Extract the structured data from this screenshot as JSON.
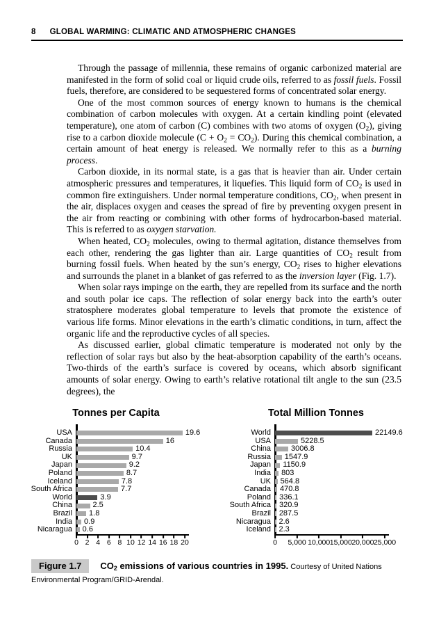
{
  "page": {
    "number": "8",
    "running_title": "GLOBAL WARMING: CLIMATIC AND ATMOSPHERIC CHANGES"
  },
  "main": {
    "paragraphs": [
      {
        "segments": [
          {
            "text": "Through the passage of millennia, these remains of organic carbonized material are manifested in the form of solid coal or liquid crude oils, referred to as "
          },
          {
            "text": "fossil fuels",
            "italic": true
          },
          {
            "text": ". Fossil fuels, therefore, are considered to be sequestered forms of concentrated solar energy."
          }
        ]
      },
      {
        "segments": [
          {
            "text": "One of the most common sources of energy known to humans is the chemical combination of carbon molecules with oxygen. At a certain kindling point (elevated temperature), one atom of carbon (C) combines with two atoms of oxygen (O"
          },
          {
            "text": "2",
            "sub": true
          },
          {
            "text": "), giving rise to a carbon dioxide molecule (C + O"
          },
          {
            "text": "2",
            "sub": true
          },
          {
            "text": " = CO"
          },
          {
            "text": "2",
            "sub": true
          },
          {
            "text": "). During this chemical combination, a certain amount of heat energy is released. We normally refer to this as a "
          },
          {
            "text": "burning process",
            "italic": true
          },
          {
            "text": "."
          }
        ]
      },
      {
        "segments": [
          {
            "text": "Carbon dioxide, in its normal state, is a gas that is heavier than air. Under certain atmospheric pressures and temperatures, it liquefies. This liquid form of CO"
          },
          {
            "text": "2",
            "sub": true
          },
          {
            "text": " is used in common fire extinguishers. Under normal temperature conditions, CO"
          },
          {
            "text": "2",
            "sub": true
          },
          {
            "text": ", when present in the air, displaces oxygen and ceases the spread of fire by preventing oxygen present in the air from reacting or combining with other forms of hydrocarbon-based material. This is referred to as "
          },
          {
            "text": "oxygen starvation.",
            "italic": true
          }
        ]
      },
      {
        "segments": [
          {
            "text": "When heated, CO"
          },
          {
            "text": "2",
            "sub": true
          },
          {
            "text": " molecules, owing to thermal agitation, distance themselves from each other, rendering the gas lighter than air. Large quantities of CO"
          },
          {
            "text": "2",
            "sub": true
          },
          {
            "text": " result from burning fossil fuels. When heated by the sun’s energy, CO"
          },
          {
            "text": "2",
            "sub": true
          },
          {
            "text": " rises to higher elevations and surrounds the planet in a blanket of gas referred to as the "
          },
          {
            "text": "inversion layer",
            "italic": true
          },
          {
            "text": " (Fig. 1.7)."
          }
        ]
      },
      {
        "segments": [
          {
            "text": "When solar rays impinge on the earth, they are repelled from its surface and the north and south polar ice caps. The reflection of solar energy back into the earth’s outer stratosphere moderates global temperature to levels that promote the existence of various life forms. Minor elevations in the earth’s climatic conditions, in turn, affect the organic life and the reproductive cycles of all species."
          }
        ]
      },
      {
        "segments": [
          {
            "text": "As discussed earlier, global climatic temperature is moderated not only by the reflection of solar rays but also by the heat-absorption capability of the earth’s oceans. Two-thirds of the earth’s surface is covered by oceans, which absorb significant amounts of solar energy. Owing to earth’s relative rotational tilt angle to the sun (23.5 degrees), the"
          }
        ]
      }
    ]
  },
  "chart_data": [
    {
      "type": "bar",
      "orientation": "horizontal",
      "title": "Tonnes per Capita",
      "xlabel": "",
      "ylabel": "",
      "xlim": [
        0,
        20
      ],
      "grid": false,
      "ticks": [
        {
          "v": 0,
          "label": "0"
        },
        {
          "v": 2,
          "label": "2"
        },
        {
          "v": 4,
          "label": "4"
        },
        {
          "v": 6,
          "label": "6"
        },
        {
          "v": 8,
          "label": "8"
        },
        {
          "v": 10,
          "label": "10"
        },
        {
          "v": 12,
          "label": "12"
        },
        {
          "v": 14,
          "label": "14"
        },
        {
          "v": 16,
          "label": "16"
        },
        {
          "v": 18,
          "label": "18"
        },
        {
          "v": 20,
          "label": "20"
        }
      ],
      "rows": [
        {
          "label": "USA",
          "value": 19.6,
          "display": "19.6",
          "dark": false
        },
        {
          "label": "Canada",
          "value": 16,
          "display": "16",
          "dark": false
        },
        {
          "label": "Russia",
          "value": 10.4,
          "display": "10.4",
          "dark": false
        },
        {
          "label": "UK",
          "value": 9.7,
          "display": "9.7",
          "dark": false
        },
        {
          "label": "Japan",
          "value": 9.2,
          "display": "9.2",
          "dark": false
        },
        {
          "label": "Poland",
          "value": 8.7,
          "display": "8.7",
          "dark": false
        },
        {
          "label": "Iceland",
          "value": 7.8,
          "display": "7.8",
          "dark": false
        },
        {
          "label": "South Africa",
          "value": 7.7,
          "display": "7.7",
          "dark": false
        },
        {
          "label": "World",
          "value": 3.9,
          "display": "3.9",
          "dark": true
        },
        {
          "label": "China",
          "value": 2.5,
          "display": "2.5",
          "dark": false
        },
        {
          "label": "Brazil",
          "value": 1.8,
          "display": "1.8",
          "dark": false
        },
        {
          "label": "India",
          "value": 0.9,
          "display": "0.9",
          "dark": false
        },
        {
          "label": "Nicaragua",
          "value": 0.6,
          "display": "0.6",
          "dark": false
        }
      ]
    },
    {
      "type": "bar",
      "orientation": "horizontal",
      "title": "Total Million Tonnes",
      "xlabel": "",
      "ylabel": "",
      "xlim": [
        0,
        25000
      ],
      "grid": false,
      "ticks": [
        {
          "v": 0,
          "label": "0"
        },
        {
          "v": 5000,
          "label": "5,000"
        },
        {
          "v": 10000,
          "label": "10,000"
        },
        {
          "v": 15000,
          "label": "15,000"
        },
        {
          "v": 20000,
          "label": "20,000"
        },
        {
          "v": 25000,
          "label": "25,000"
        }
      ],
      "rows": [
        {
          "label": "World",
          "value": 22149.6,
          "display": "22149.6",
          "dark": true
        },
        {
          "label": "USA",
          "value": 5228.5,
          "display": "5228.5",
          "dark": false
        },
        {
          "label": "China",
          "value": 3006.8,
          "display": "3006.8",
          "dark": false
        },
        {
          "label": "Russia",
          "value": 1547.9,
          "display": "1547.9",
          "dark": false
        },
        {
          "label": "Japan",
          "value": 1150.9,
          "display": "1150.9",
          "dark": false
        },
        {
          "label": "India",
          "value": 803,
          "display": "803",
          "dark": false
        },
        {
          "label": "UK",
          "value": 564.8,
          "display": "564.8",
          "dark": false
        },
        {
          "label": "Canada",
          "value": 470.8,
          "display": "470.8",
          "dark": false
        },
        {
          "label": "Poland",
          "value": 336.1,
          "display": "336.1",
          "dark": false
        },
        {
          "label": "South Africa",
          "value": 320.9,
          "display": "320.9",
          "dark": false
        },
        {
          "label": "Brazil",
          "value": 287.5,
          "display": "287.5",
          "dark": false
        },
        {
          "label": "Nicaragua",
          "value": 2.6,
          "display": "2.6",
          "dark": false
        },
        {
          "label": "Iceland",
          "value": 2.3,
          "display": "2.3",
          "dark": false
        }
      ]
    }
  ],
  "figure": {
    "label": "Figure 1.7",
    "caption_segments": [
      {
        "text": "CO",
        "bold": true
      },
      {
        "text": "2",
        "sub": true,
        "bold": true
      },
      {
        "text": " emissions of various countries in 1995.",
        "bold": true
      },
      {
        "text": " Courtesy of United Nations Environmental Program/GRID-Arendal.",
        "small": true
      }
    ]
  },
  "colors": {
    "bar": "#a9a9a9",
    "bar_dark": "#4d4d4d",
    "axis": "#000000",
    "figure_label_bg": "#c9c9c9"
  }
}
